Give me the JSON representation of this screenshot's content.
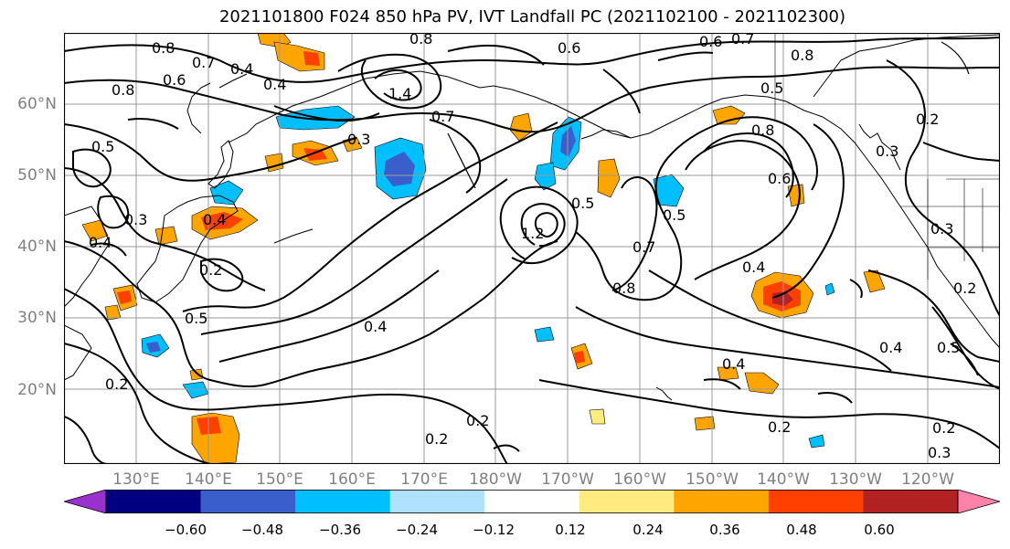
{
  "title": "2021101800 F024 850 hPa PV, IVT Landfall PC (2021102100 - 2021102300)",
  "lat_labels": [
    "60°N",
    "50°N",
    "40°N",
    "30°N",
    "20°N"
  ],
  "lon_labels": [
    "130°E",
    "140°E",
    "150°E",
    "160°E",
    "170°E",
    "180°W",
    "170°W",
    "160°W",
    "150°W",
    "140°W",
    "130°W",
    "120°W"
  ],
  "colorbar": {
    "ticks": [
      "−0.60",
      "−0.48",
      "−0.36",
      "−0.24",
      "−0.12",
      "0.12",
      "0.24",
      "0.36",
      "0.48",
      "0.60"
    ],
    "colors": [
      "#9932cc",
      "#000080",
      "#3a5fcd",
      "#00bfff",
      "#b0e2ff",
      "#ffffff",
      "#ffeb80",
      "#ffa500",
      "#ff4000",
      "#b22222",
      "#ff82ab"
    ],
    "extend": "both"
  },
  "contour_labels": [
    "0.8",
    "0.6",
    "0.7",
    "0.4",
    "0.8",
    "0.5",
    "0.4",
    "0.6",
    "0.7",
    "0.8",
    "0.5",
    "0.6",
    "0.8",
    "0.3",
    "0.2",
    "0.3",
    "0.2",
    "0.4",
    "0.2",
    "0.5",
    "0.4",
    "0.2",
    "0.4",
    "0.6",
    "0.8",
    "0.5",
    "1.4",
    "1.2",
    "0.7",
    "0.7",
    "0.5",
    "0.8",
    "0.4",
    "0.3",
    "0.4",
    "0.2",
    "0.2",
    "0.2",
    "0.3",
    "0.4",
    "0.2",
    "0.3",
    "0.5"
  ]
}
